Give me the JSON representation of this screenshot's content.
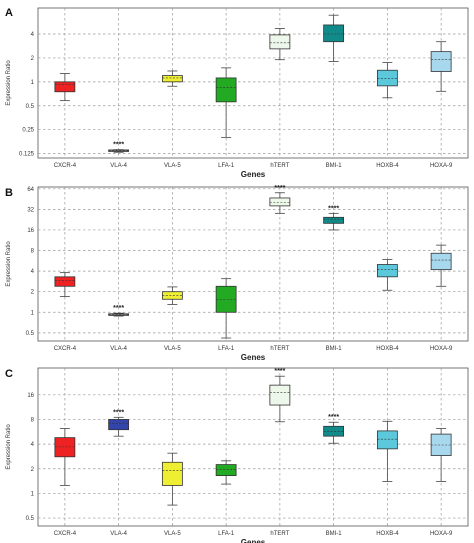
{
  "chart_data": [
    {
      "type": "box",
      "panel_label": "A",
      "ylabel": "Expression Ratio",
      "xlabel": "Genes",
      "y_scale": "log2",
      "ylim": [
        0.11,
        8.5
      ],
      "yticks": [
        0.125,
        0.25,
        0.5,
        1,
        2,
        4
      ],
      "ytick_labels": [
        "0.125",
        "0.25",
        "0.5",
        "1",
        "2",
        "4"
      ],
      "grid": true,
      "categories": [
        "CXCR-4",
        "VLA-4",
        "VLA-5",
        "LFA-1",
        "hTERT",
        "BMI-1",
        "HOXB-4",
        "HOXA-9"
      ],
      "colors": [
        "#ee2222",
        "#909090",
        "#eeee33",
        "#22aa22",
        "#eef8ea",
        "#118a8a",
        "#5bc8dc",
        "#a8d8ee"
      ],
      "significance": [
        "",
        "****",
        "",
        "",
        "",
        "",
        "",
        ""
      ],
      "boxes": [
        {
          "min": 0.58,
          "q1": 0.75,
          "median": 0.92,
          "q3": 1.0,
          "max": 1.27
        },
        {
          "min": 0.13,
          "q1": 0.133,
          "median": 0.136,
          "q3": 0.139,
          "max": 0.14
        },
        {
          "min": 0.88,
          "q1": 1.0,
          "median": 1.12,
          "q3": 1.2,
          "max": 1.37
        },
        {
          "min": 0.2,
          "q1": 0.56,
          "median": 0.85,
          "q3": 1.12,
          "max": 1.5
        },
        {
          "min": 1.9,
          "q1": 2.6,
          "median": 3.1,
          "q3": 3.9,
          "max": 4.7
        },
        {
          "min": 1.8,
          "q1": 3.2,
          "median": 4.0,
          "q3": 5.2,
          "max": 6.9
        },
        {
          "min": 0.63,
          "q1": 0.89,
          "median": 1.1,
          "q3": 1.4,
          "max": 1.75
        },
        {
          "min": 0.76,
          "q1": 1.35,
          "median": 1.9,
          "q3": 2.4,
          "max": 3.2
        }
      ]
    },
    {
      "type": "box",
      "panel_label": "B",
      "ylabel": "Expression Ratio",
      "xlabel": "Genes",
      "y_scale": "log2",
      "ylim": [
        0.38,
        68
      ],
      "yticks": [
        0.5,
        1,
        2,
        4,
        8,
        16,
        32,
        64
      ],
      "ytick_labels": [
        "0.5",
        "1",
        "2",
        "4",
        "8",
        "16",
        "32",
        "64"
      ],
      "grid": true,
      "categories": [
        "CXCR-4",
        "VLA-4",
        "VLA-5",
        "LFA-1",
        "hTERT",
        "BMI-1",
        "HOXB-4",
        "HOXA-9"
      ],
      "colors": [
        "#ee2222",
        "#909090",
        "#eeee33",
        "#22aa22",
        "#eef8ea",
        "#118a8a",
        "#5bc8dc",
        "#a8d8ee"
      ],
      "significance": [
        "",
        "****",
        "",
        "",
        "****",
        "****",
        "",
        ""
      ],
      "boxes": [
        {
          "min": 1.7,
          "q1": 2.4,
          "median": 2.9,
          "q3": 3.3,
          "max": 3.8
        },
        {
          "min": 0.88,
          "q1": 0.9,
          "median": 0.92,
          "q3": 0.95,
          "max": 0.97
        },
        {
          "min": 1.3,
          "q1": 1.55,
          "median": 1.75,
          "q3": 2.0,
          "max": 2.35
        },
        {
          "min": 0.42,
          "q1": 1.0,
          "median": 1.55,
          "q3": 2.4,
          "max": 3.1
        },
        {
          "min": 28,
          "q1": 36,
          "median": 40,
          "q3": 47,
          "max": 56
        },
        {
          "min": 16,
          "q1": 20,
          "median": 23,
          "q3": 24.5,
          "max": 28
        },
        {
          "min": 2.1,
          "q1": 3.3,
          "median": 4.2,
          "q3": 5.0,
          "max": 5.9
        },
        {
          "min": 2.4,
          "q1": 4.2,
          "median": 5.8,
          "q3": 7.3,
          "max": 9.6
        }
      ]
    },
    {
      "type": "box",
      "panel_label": "C",
      "ylabel": "Expression Ratio",
      "xlabel": "Genes",
      "y_scale": "log2",
      "ylim": [
        0.4,
        34
      ],
      "yticks": [
        0.5,
        1,
        2,
        4,
        8,
        16
      ],
      "ytick_labels": [
        "0.5",
        "1",
        "2",
        "4",
        "8",
        "16"
      ],
      "grid": true,
      "categories": [
        "CXCR-4",
        "VLA-4",
        "VLA-5",
        "LFA-1",
        "hTERT",
        "BMI-1",
        "HOXB-4",
        "HOXA-9"
      ],
      "colors": [
        "#ee2222",
        "#3344aa",
        "#eeee33",
        "#22aa22",
        "#eef8ea",
        "#118a8a",
        "#5bc8dc",
        "#a8d8ee"
      ],
      "significance": [
        "",
        "****",
        "",
        "",
        "****",
        "****",
        "",
        ""
      ],
      "boxes": [
        {
          "min": 1.25,
          "q1": 2.8,
          "median": 3.7,
          "q3": 4.8,
          "max": 6.2
        },
        {
          "min": 5.0,
          "q1": 6.0,
          "median": 7.1,
          "q3": 8.0,
          "max": 8.5
        },
        {
          "min": 0.72,
          "q1": 1.25,
          "median": 1.9,
          "q3": 2.4,
          "max": 3.1
        },
        {
          "min": 1.3,
          "q1": 1.65,
          "median": 1.95,
          "q3": 2.25,
          "max": 2.5
        },
        {
          "min": 7.5,
          "q1": 12,
          "median": 17,
          "q3": 21,
          "max": 27
        },
        {
          "min": 4.1,
          "q1": 5.0,
          "median": 5.7,
          "q3": 6.6,
          "max": 7.4
        },
        {
          "min": 1.4,
          "q1": 3.5,
          "median": 4.6,
          "q3": 5.8,
          "max": 7.6
        },
        {
          "min": 1.4,
          "q1": 2.9,
          "median": 3.9,
          "q3": 5.3,
          "max": 6.2
        }
      ]
    }
  ]
}
